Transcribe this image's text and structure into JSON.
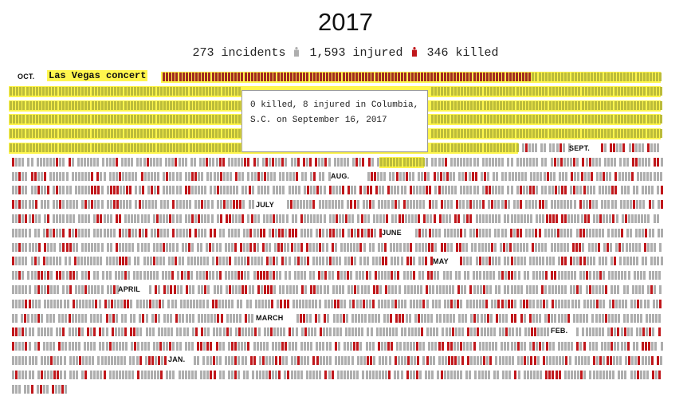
{
  "title": "2017",
  "summary": {
    "incidents": "273 incidents",
    "injured": "1,593 injured",
    "killed": "346 killed"
  },
  "colors": {
    "injured": "#aeaeae",
    "killed": "#c0171b",
    "highlight": "#fff64d",
    "highlight_injured": "#bcbc3a",
    "highlight_killed": "#a12a20"
  },
  "highlighted_event": {
    "label": "Las Vegas concert",
    "killed": 58,
    "injured": 546
  },
  "tooltip": {
    "text": "0 killed, 8 injured in Columbia, S.C. on September 16, 2017"
  },
  "months": [
    "OCT.",
    "SEPT.",
    "AUG.",
    "JULY",
    "JUNE",
    "MAY",
    "APRIL",
    "MARCH",
    "FEB.",
    "JAN."
  ]
}
